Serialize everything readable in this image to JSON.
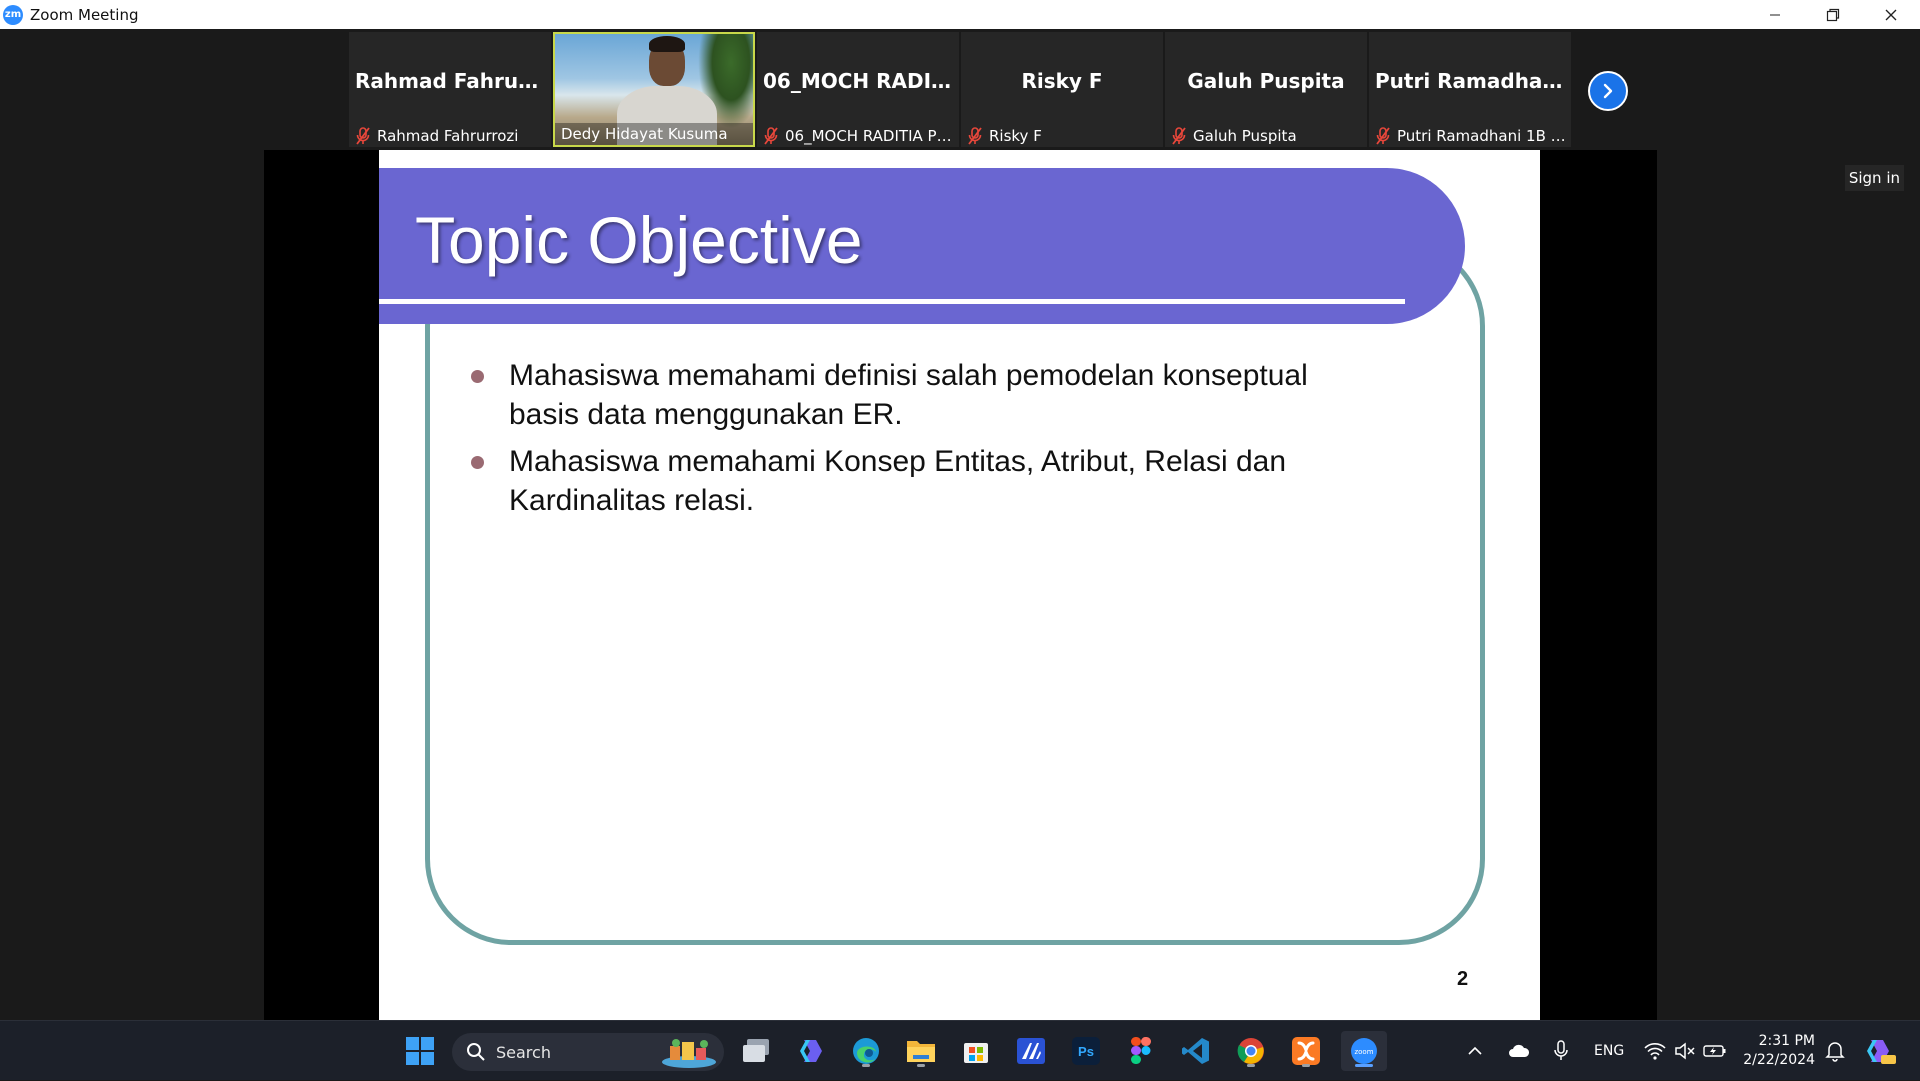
{
  "window": {
    "app_logo": "zm",
    "title": "Zoom Meeting",
    "controls": [
      "minimize-icon",
      "restore-icon",
      "close-icon"
    ]
  },
  "participants": [
    {
      "big_name": "Rahmad  Fahrurr...",
      "caption": "Rahmad Fahrurrozi",
      "muted": true,
      "video": false
    },
    {
      "big_name": "",
      "caption": "Dedy Hidayat Kusuma",
      "muted": false,
      "video": true
    },
    {
      "big_name": "06_MOCH  RADI...",
      "caption": "06_MOCH RADITIA PE...",
      "muted": true,
      "video": false
    },
    {
      "big_name": "Risky F",
      "caption": "Risky F",
      "muted": true,
      "video": false
    },
    {
      "big_name": "Galuh Puspita",
      "caption": "Galuh Puspita",
      "muted": true,
      "video": false
    },
    {
      "big_name": "Putri  Ramadhan...",
      "caption": "Putri Ramadhani 1B B...",
      "muted": true,
      "video": false
    }
  ],
  "sign_in_label": "Sign in",
  "slide": {
    "title": "Topic Objective",
    "bullets": [
      "Mahasiswa memahami definisi salah pemodelan konseptual basis data menggunakan ER.",
      "Mahasiswa memahami Konsep Entitas, Atribut, Relasi dan Kardinalitas relasi."
    ],
    "page_number": "2",
    "colors": {
      "banner": "#6a66d1",
      "frame": "#6fa3a3",
      "bullet": "#9a6a72"
    }
  },
  "taskbar": {
    "search_label": "Search",
    "apps": [
      "windows-start-icon",
      "task-view-icon",
      "copilot-icon",
      "edge-icon",
      "file-explorer-icon",
      "store-icon",
      "app-icon",
      "photoshop-icon",
      "figma-icon",
      "vscode-icon",
      "chrome-icon",
      "xampp-icon",
      "zoom-icon"
    ],
    "photoshop_label": "Ps",
    "zoom_label": "zoom",
    "language": "ENG",
    "time": "2:31 PM",
    "date": "2/22/2024"
  }
}
